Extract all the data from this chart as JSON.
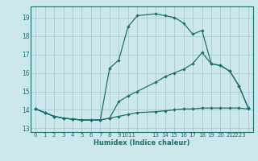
{
  "title": "",
  "xlabel": "Humidex (Indice chaleur)",
  "bg_color": "#cde8ec",
  "grid_color": "#b0cdd4",
  "line_color": "#1a7070",
  "spine_color": "#1a7070",
  "xlim": [
    -0.5,
    23.5
  ],
  "ylim": [
    12.8,
    19.6
  ],
  "xtick_positions": [
    0,
    1,
    2,
    3,
    4,
    5,
    6,
    7,
    8,
    9,
    10,
    11,
    13,
    14,
    15,
    16,
    17,
    18,
    19,
    20,
    21,
    22,
    23
  ],
  "xtick_labels": [
    "0",
    "1",
    "2",
    "3",
    "4",
    "5",
    "6",
    "7",
    "8",
    "9",
    "1011",
    "",
    "13",
    "14",
    "15",
    "16",
    "17",
    "18",
    "19",
    "20",
    "21",
    "2223",
    ""
  ],
  "ytick_positions": [
    13,
    14,
    15,
    16,
    17,
    18,
    19
  ],
  "ytick_labels": [
    "13",
    "14",
    "15",
    "16",
    "17",
    "18",
    "19"
  ],
  "line1_x": [
    0,
    1,
    2,
    3,
    4,
    5,
    6,
    7,
    8,
    9,
    10,
    11,
    13,
    14,
    15,
    16,
    17,
    18,
    19,
    20,
    21,
    22,
    23
  ],
  "line1_y": [
    14.05,
    13.85,
    13.65,
    13.55,
    13.5,
    13.45,
    13.45,
    13.45,
    13.55,
    13.65,
    13.75,
    13.85,
    13.9,
    13.95,
    14.0,
    14.05,
    14.05,
    14.1,
    14.1,
    14.1,
    14.1,
    14.1,
    14.05
  ],
  "line2_x": [
    0,
    1,
    2,
    3,
    4,
    5,
    6,
    7,
    8,
    9,
    10,
    11,
    13,
    14,
    15,
    16,
    17,
    18,
    19,
    20,
    21,
    22,
    23
  ],
  "line2_y": [
    14.05,
    13.85,
    13.65,
    13.55,
    13.5,
    13.45,
    13.45,
    13.45,
    16.25,
    16.7,
    18.5,
    19.1,
    19.2,
    19.1,
    19.0,
    18.7,
    18.1,
    18.3,
    16.5,
    16.4,
    16.1,
    15.3,
    14.1
  ],
  "line3_x": [
    0,
    1,
    2,
    3,
    4,
    5,
    6,
    7,
    8,
    9,
    10,
    11,
    13,
    14,
    15,
    16,
    17,
    18,
    19,
    20,
    21,
    22,
    23
  ],
  "line3_y": [
    14.05,
    13.85,
    13.65,
    13.55,
    13.5,
    13.45,
    13.45,
    13.45,
    13.55,
    14.45,
    14.75,
    15.0,
    15.5,
    15.8,
    16.0,
    16.2,
    16.5,
    17.1,
    16.5,
    16.4,
    16.1,
    15.3,
    14.1
  ]
}
